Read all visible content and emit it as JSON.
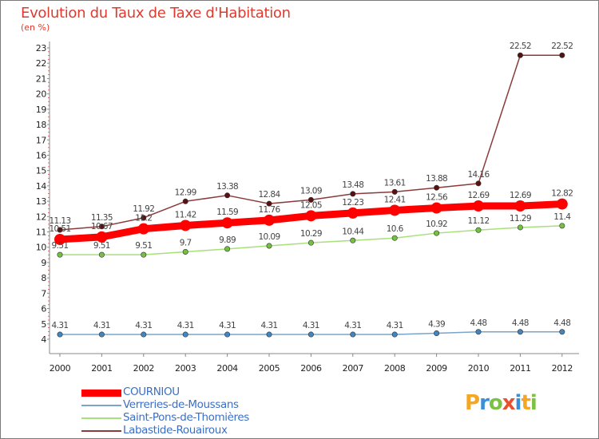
{
  "header": {
    "title": "Evolution du Taux de Taxe d'Habitation",
    "subtitle": "(en %)"
  },
  "brand": {
    "logo_text": "Proxiti",
    "logo_letters": [
      {
        "ch": "P",
        "color": "#f5a623"
      },
      {
        "ch": "r",
        "color": "#3b8fd6"
      },
      {
        "ch": "o",
        "color": "#7cc242"
      },
      {
        "ch": "x",
        "color": "#e8502f"
      },
      {
        "ch": "i",
        "color": "#3b8fd6"
      },
      {
        "ch": "t",
        "color": "#f5a623"
      },
      {
        "ch": "i",
        "color": "#7cc242"
      }
    ]
  },
  "chart_data": {
    "type": "line",
    "title": "Evolution du Taux de Taxe d'Habitation",
    "ylabel": "(en %)",
    "xlabel": "",
    "x": [
      "2000",
      "2001",
      "2002",
      "2003",
      "2004",
      "2005",
      "2006",
      "2007",
      "2008",
      "2009",
      "2010",
      "2011",
      "2012"
    ],
    "ylim": [
      4,
      23
    ],
    "yticks": [
      4,
      5,
      6,
      7,
      8,
      9,
      10,
      11,
      12,
      13,
      14,
      15,
      16,
      17,
      18,
      19,
      20,
      21,
      22,
      23
    ],
    "grid": false,
    "legend": "bottom-left",
    "series": [
      {
        "name": "COURNIOU",
        "color": "#ff0000",
        "marker_color": "#ff0000",
        "values": [
          10.51,
          10.67,
          11.2,
          11.42,
          11.59,
          11.76,
          12.05,
          12.23,
          12.41,
          12.56,
          12.69,
          12.69,
          12.82
        ],
        "labels": [
          "10.51",
          "10.67",
          "11.2",
          "11.42",
          "11.59",
          "11.76",
          "12.05",
          "12.23",
          "12.41",
          "12.56",
          "12.69",
          "12.69",
          "12.82"
        ]
      },
      {
        "name": "Verreries-de-Moussans",
        "color": "#7aa5c8",
        "marker_color": "#3f86c4",
        "values": [
          4.31,
          4.31,
          4.31,
          4.31,
          4.31,
          4.31,
          4.31,
          4.31,
          4.31,
          4.39,
          4.48,
          4.48,
          4.48
        ],
        "labels": [
          "4.31",
          "4.31",
          "4.31",
          "4.31",
          "4.31",
          "4.31",
          "4.31",
          "4.31",
          "4.31",
          "4.39",
          "4.48",
          "4.48",
          "4.48"
        ]
      },
      {
        "name": "Saint-Pons-de-Thomières",
        "color": "#a8e07a",
        "marker_color": "#72c23f",
        "values": [
          9.51,
          9.51,
          9.51,
          9.7,
          9.89,
          10.09,
          10.29,
          10.44,
          10.6,
          10.92,
          11.12,
          11.29,
          11.4
        ],
        "labels": [
          "9.51",
          "9.51",
          "9.51",
          "9.7",
          "9.89",
          "10.09",
          "10.29",
          "10.44",
          "10.6",
          "10.92",
          "11.12",
          "11.29",
          "11.4"
        ]
      },
      {
        "name": "Labastide-Rouairoux",
        "color": "#8a3a3a",
        "marker_color": "#5a1010",
        "values": [
          11.13,
          11.35,
          11.92,
          12.99,
          13.38,
          12.84,
          13.09,
          13.48,
          13.61,
          13.88,
          14.16,
          22.52,
          22.52
        ],
        "labels": [
          "11.13",
          "11.35",
          "11.92",
          "12.99",
          "13.38",
          "12.84",
          "13.09",
          "13.48",
          "13.61",
          "13.88",
          "14.16",
          "22.52",
          "22.52"
        ]
      }
    ]
  }
}
